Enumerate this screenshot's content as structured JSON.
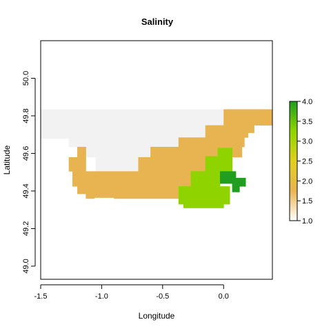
{
  "chart_data": {
    "type": "heatmap",
    "title": "Salinity",
    "xlabel": "Longitude",
    "ylabel": "Latitude",
    "xlim": [
      -1.5,
      0.4
    ],
    "ylim": [
      48.93,
      50.2
    ],
    "xticks": [
      -1.5,
      -1.0,
      -0.5,
      0.0
    ],
    "xtick_labels": [
      "-1.5",
      "-1.0",
      "-0.5",
      "0.0"
    ],
    "yticks": [
      49.0,
      49.2,
      49.4,
      49.6,
      49.8,
      50.0
    ],
    "ytick_labels": [
      "49.0",
      "49.2",
      "49.4",
      "49.6",
      "49.8",
      "50.0"
    ],
    "grid": false,
    "legend": {
      "position": "right",
      "range": [
        1.0,
        4.0
      ],
      "ticks": [
        "1.0",
        "1.5",
        "2.0",
        "2.5",
        "3.0",
        "3.5",
        "4.0"
      ],
      "colors": [
        "#ffffff",
        "#e8b451",
        "#e0d020",
        "#8fd400",
        "#1f9e1f"
      ]
    },
    "colors": {
      "1": "#f2f2f2",
      "2": "#e8b451",
      "3": "#8fd400",
      "4": "#1f9e1f"
    },
    "cells": [
      {
        "xmin": -1.5,
        "xmax": 0.4,
        "ymin": 49.77,
        "ymax": 49.835,
        "value": 1
      },
      {
        "xmin": -1.5,
        "xmax": 0.2,
        "ymin": 49.73,
        "ymax": 49.77,
        "value": 1
      },
      {
        "xmin": -1.5,
        "xmax": 0.05,
        "ymin": 49.68,
        "ymax": 49.73,
        "value": 1
      },
      {
        "xmin": -1.27,
        "xmax": 0.02,
        "ymin": 49.635,
        "ymax": 49.68,
        "value": 1
      },
      {
        "xmin": -1.2,
        "xmax": 0.0,
        "ymin": 49.58,
        "ymax": 49.635,
        "value": 1
      },
      {
        "xmin": -1.05,
        "xmax": -0.07,
        "ymin": 49.505,
        "ymax": 49.58,
        "value": 1
      },
      {
        "xmin": 0.0,
        "xmax": 0.4,
        "ymin": 49.77,
        "ymax": 49.835,
        "value": 2
      },
      {
        "xmin": 0.0,
        "xmax": 0.4,
        "ymin": 49.75,
        "ymax": 49.77,
        "value": 2
      },
      {
        "xmin": -0.15,
        "xmax": 0.25,
        "ymin": 49.71,
        "ymax": 49.75,
        "value": 2
      },
      {
        "xmin": -0.15,
        "xmax": 0.2,
        "ymin": 49.685,
        "ymax": 49.71,
        "value": 2
      },
      {
        "xmin": -0.37,
        "xmax": 0.17,
        "ymin": 49.635,
        "ymax": 49.685,
        "value": 2
      },
      {
        "xmin": -0.6,
        "xmax": 0.15,
        "ymin": 49.58,
        "ymax": 49.635,
        "value": 2
      },
      {
        "xmin": -1.2,
        "xmax": -1.13,
        "ymin": 49.58,
        "ymax": 49.635,
        "value": 2
      },
      {
        "xmin": -1.27,
        "xmax": -1.13,
        "ymin": 49.505,
        "ymax": 49.58,
        "value": 2
      },
      {
        "xmin": -0.7,
        "xmax": 0.0,
        "ymin": 49.505,
        "ymax": 49.58,
        "value": 2
      },
      {
        "xmin": -1.24,
        "xmax": -0.15,
        "ymin": 49.425,
        "ymax": 49.505,
        "value": 2
      },
      {
        "xmin": -1.2,
        "xmax": -0.37,
        "ymin": 49.385,
        "ymax": 49.425,
        "value": 2
      },
      {
        "xmin": -1.13,
        "xmax": -0.37,
        "ymin": 49.365,
        "ymax": 49.385,
        "value": 2
      },
      {
        "xmin": -1.13,
        "xmax": -1.06,
        "ymin": 49.36,
        "ymax": 49.365,
        "value": 2
      },
      {
        "xmin": -0.9,
        "xmax": -0.37,
        "ymin": 49.36,
        "ymax": 49.365,
        "value": 2
      },
      {
        "xmin": -0.05,
        "xmax": 0.07,
        "ymin": 49.585,
        "ymax": 49.63,
        "value": 3
      },
      {
        "xmin": -0.15,
        "xmax": 0.07,
        "ymin": 49.505,
        "ymax": 49.585,
        "value": 3
      },
      {
        "xmin": -0.27,
        "xmax": -0.03,
        "ymin": 49.425,
        "ymax": 49.505,
        "value": 3
      },
      {
        "xmin": -0.37,
        "xmax": 0.05,
        "ymin": 49.33,
        "ymax": 49.425,
        "value": 3
      },
      {
        "xmin": -0.33,
        "xmax": -0.0,
        "ymin": 49.31,
        "ymax": 49.33,
        "value": 3
      },
      {
        "xmin": -0.03,
        "xmax": 0.1,
        "ymin": 49.44,
        "ymax": 49.505,
        "value": 4
      },
      {
        "xmin": 0.07,
        "xmax": 0.18,
        "ymin": 49.425,
        "ymax": 49.47,
        "value": 4
      },
      {
        "xmin": 0.07,
        "xmax": 0.13,
        "ymin": 49.395,
        "ymax": 49.425,
        "value": 4
      }
    ]
  }
}
